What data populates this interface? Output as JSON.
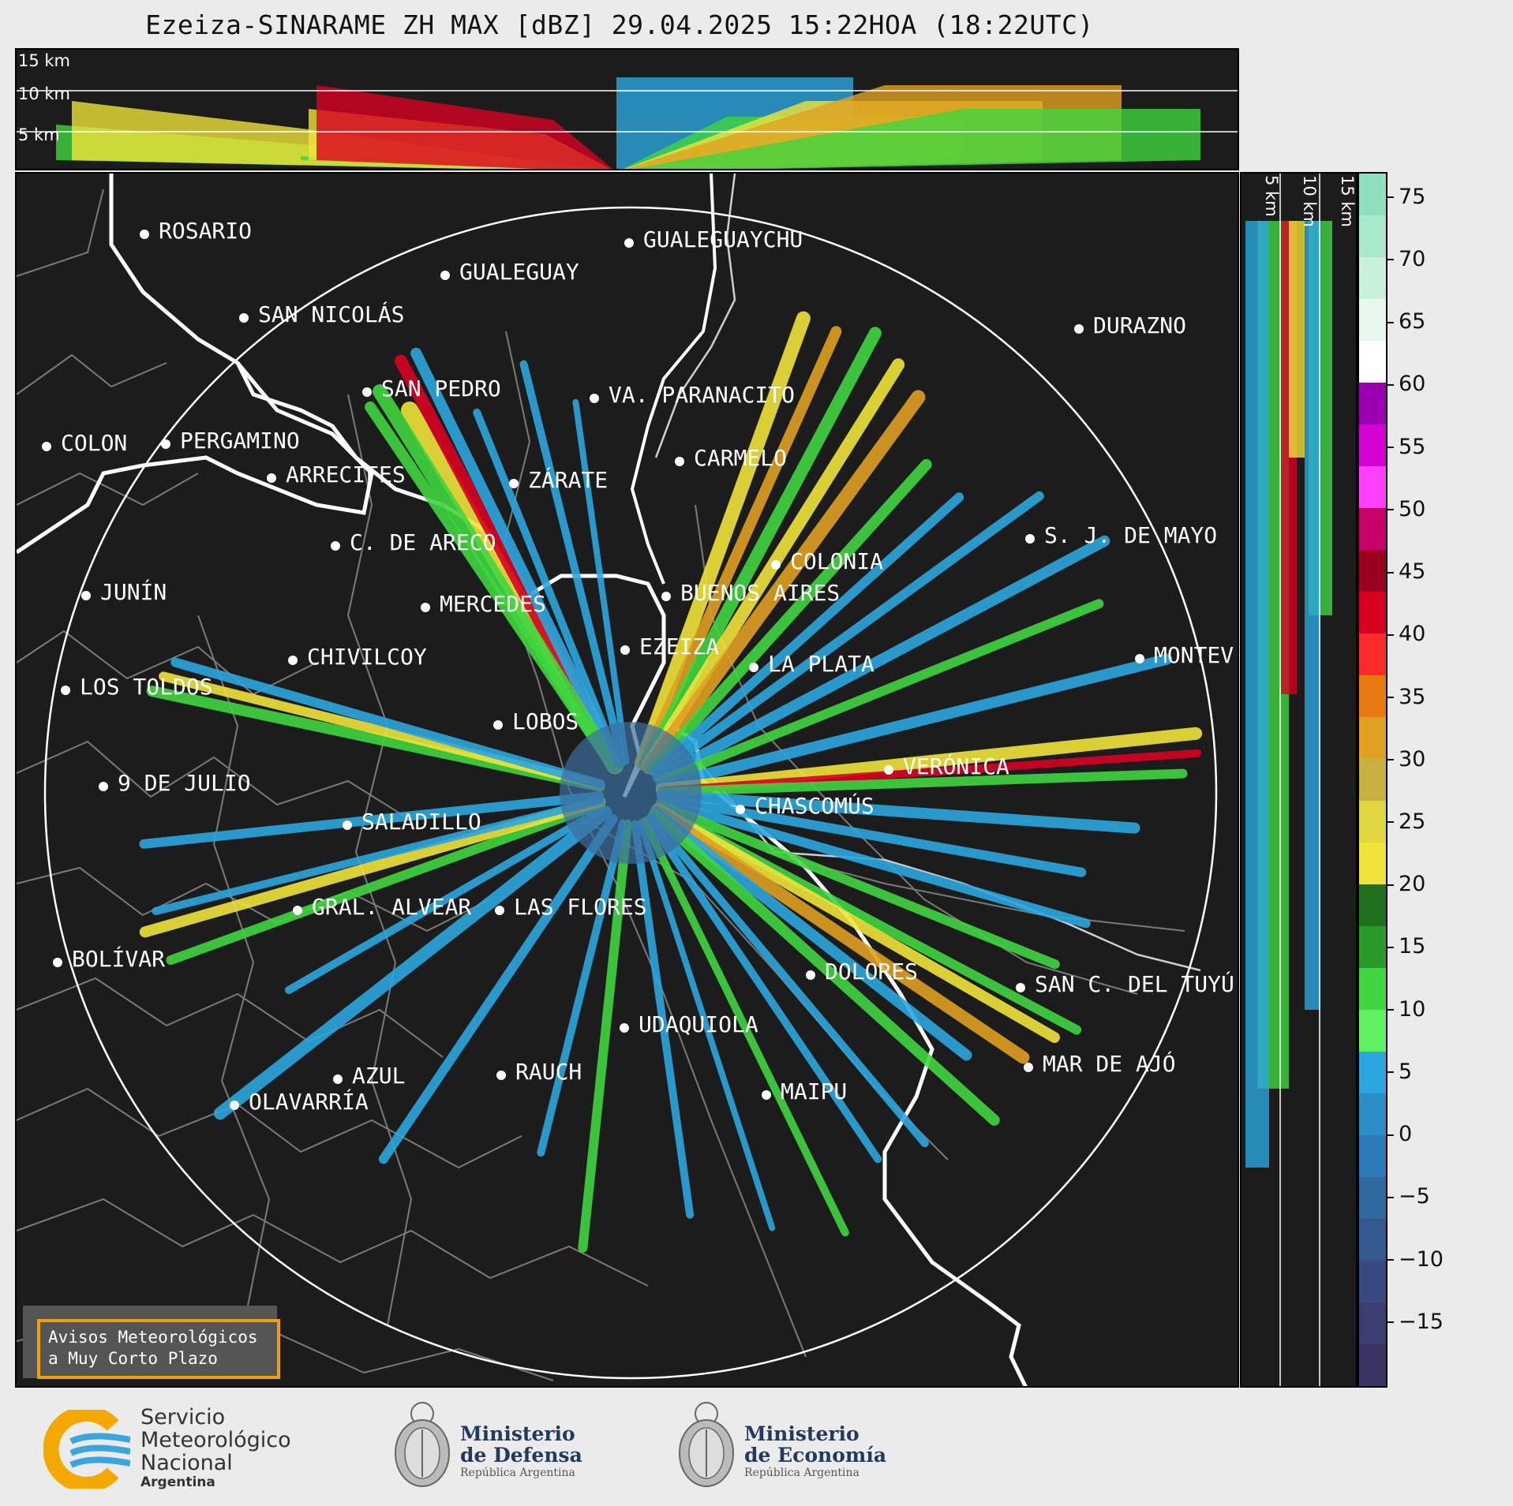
{
  "title": "Ezeiza-SINARAME ZH MAX [dBZ] 29.04.2025 15:22HOA (18:22UTC)",
  "top_panel": {
    "levels": [
      "15 km",
      "10 km",
      "5 km"
    ]
  },
  "side_panel": {
    "levels": [
      "5 km",
      "10 km",
      "15 km"
    ]
  },
  "colorbar": {
    "unit": "dBZ",
    "ticks": [
      "75",
      "70",
      "65",
      "60",
      "55",
      "50",
      "45",
      "40",
      "35",
      "30",
      "25",
      "20",
      "15",
      "10",
      "5",
      "0",
      "−5",
      "−10",
      "−15"
    ],
    "range": [
      -20,
      77
    ]
  },
  "cities": [
    {
      "name": "ROSARIO"
    },
    {
      "name": "GUALEGUAYCHU"
    },
    {
      "name": "GUALEGUAY"
    },
    {
      "name": "SAN NICOLÁS"
    },
    {
      "name": "DURAZNO"
    },
    {
      "name": "SAN PEDRO"
    },
    {
      "name": "VA. PARANACITO"
    },
    {
      "name": "COLON"
    },
    {
      "name": "PERGAMINO"
    },
    {
      "name": "CARMELO"
    },
    {
      "name": "ARRECIFES"
    },
    {
      "name": "ZÁRATE"
    },
    {
      "name": "S. J. DE MAYO"
    },
    {
      "name": "C. DE ARECO"
    },
    {
      "name": "COLONIA"
    },
    {
      "name": "BUENOS AIRES"
    },
    {
      "name": "JUNÍN"
    },
    {
      "name": "MERCEDES"
    },
    {
      "name": "EZEIZA"
    },
    {
      "name": "MONTEV"
    },
    {
      "name": "CHIVILCOY"
    },
    {
      "name": "LA PLATA"
    },
    {
      "name": "LOS TOLDOS"
    },
    {
      "name": "LOBOS"
    },
    {
      "name": "VERÓNICA"
    },
    {
      "name": "9 DE JULIO"
    },
    {
      "name": "CHASCOMÚS"
    },
    {
      "name": "SALADILLO"
    },
    {
      "name": "GRAL. ALVEAR"
    },
    {
      "name": "LAS FLORES"
    },
    {
      "name": "BOLÍVAR"
    },
    {
      "name": "DOLORES"
    },
    {
      "name": "SAN C. DEL TUYÚ"
    },
    {
      "name": "UDAQUIOLA"
    },
    {
      "name": "AZUL"
    },
    {
      "name": "RAUCH"
    },
    {
      "name": "MAR DE AJÓ"
    },
    {
      "name": "OLAVARRÍA"
    },
    {
      "name": "MAIPU"
    }
  ],
  "warning_box": {
    "line1": "Avisos Meteorológicos",
    "line2": "a Muy Corto Plazo"
  },
  "logos": {
    "smn": {
      "line1": "Servicio",
      "line2": "Meteorológico",
      "line3": "Nacional",
      "line4": "Argentina"
    },
    "defensa": {
      "line1": "Ministerio",
      "line2": "de Defensa",
      "line3": "República Argentina"
    },
    "economia": {
      "line1": "Ministerio",
      "line2": "de Economía",
      "line3": "República Argentina"
    }
  },
  "colors": {
    "background": "#1c1c1c",
    "range_ring": "#ffffff",
    "coast": "#ffffff",
    "borders": "#7a7a7a"
  }
}
